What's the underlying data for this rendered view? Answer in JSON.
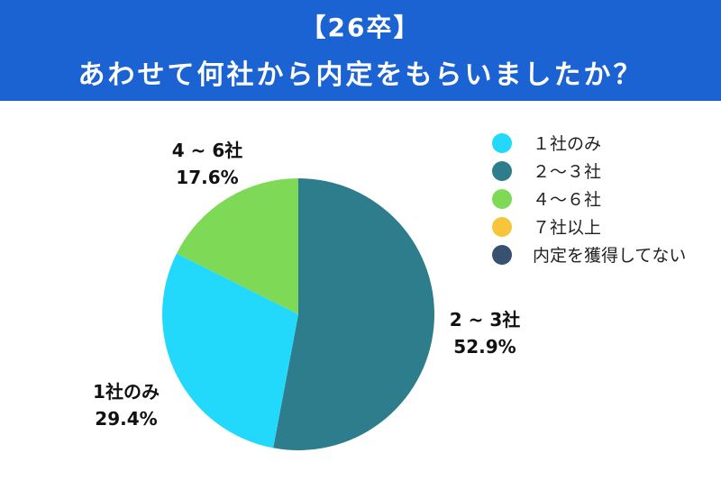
{
  "header": {
    "line1": "【26卒】",
    "line2": "あわせて何社から内定をもらいましたか？"
  },
  "chart_data": {
    "type": "pie",
    "title": "【26卒】あわせて何社から内定をもらいましたか？",
    "legend_position": "right",
    "slices": [
      {
        "name": "１社のみ",
        "label": "1社のみ",
        "value": 29.4,
        "value_text": "29.4%",
        "color": "#22d9fb"
      },
      {
        "name": "２〜３社",
        "label": "2 ~ 3社",
        "value": 52.9,
        "value_text": "52.9%",
        "color": "#2d7d8c"
      },
      {
        "name": "４〜６社",
        "label": "4 ~ 6社",
        "value": 17.6,
        "value_text": "17.6%",
        "color": "#7ed957"
      },
      {
        "name": "７社以上",
        "value": 0,
        "color": "#f8c53a"
      },
      {
        "name": "内定を獲得してない",
        "value": 0,
        "color": "#385170"
      }
    ],
    "draw_order": [
      1,
      0,
      2
    ]
  }
}
